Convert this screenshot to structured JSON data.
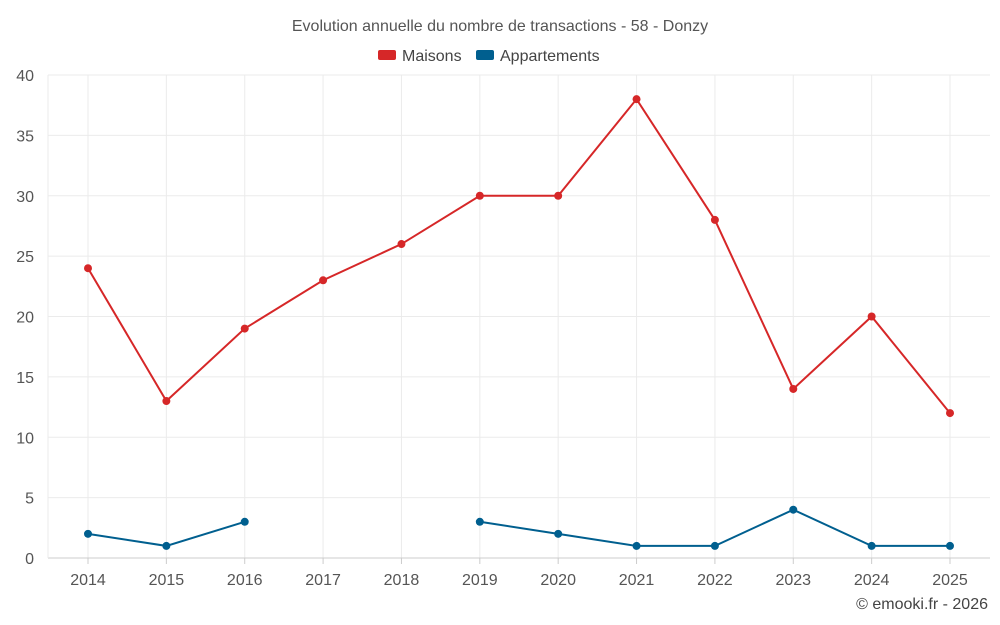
{
  "chart_data": {
    "type": "line",
    "title": "Evolution annuelle du nombre de transactions - 58 - Donzy",
    "xlabel": "",
    "ylabel": "",
    "categories": [
      "2014",
      "2015",
      "2016",
      "2017",
      "2018",
      "2019",
      "2020",
      "2021",
      "2022",
      "2023",
      "2024",
      "2025"
    ],
    "ylim": [
      0,
      40
    ],
    "yticks": [
      0,
      5,
      10,
      15,
      20,
      25,
      30,
      35,
      40
    ],
    "grid": true,
    "legend_position": "top-center",
    "series": [
      {
        "name": "Maisons",
        "color": "#d62728",
        "values": [
          24,
          13,
          19,
          23,
          26,
          30,
          30,
          38,
          28,
          14,
          20,
          12
        ]
      },
      {
        "name": "Appartements",
        "color": "#005f8f",
        "values": [
          2,
          1,
          3,
          null,
          null,
          3,
          2,
          1,
          1,
          4,
          1,
          1
        ]
      }
    ],
    "credit": "© emooki.fr - 2026"
  }
}
